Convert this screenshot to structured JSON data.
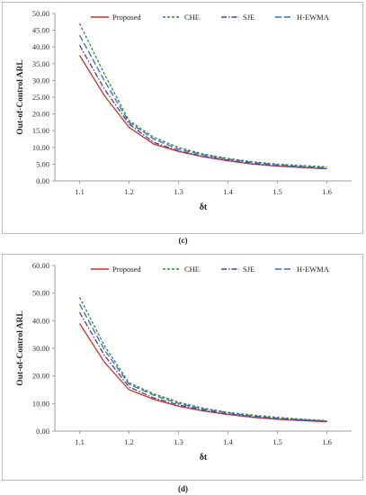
{
  "captions": [
    "(c)",
    "(d)"
  ],
  "chart_data": [
    {
      "type": "line",
      "panel": "(c)",
      "xlabel": "δt",
      "ylabel": "Out-of-Control ARL",
      "x": [
        1.1,
        1.15,
        1.2,
        1.25,
        1.3,
        1.35,
        1.4,
        1.45,
        1.5,
        1.55,
        1.6
      ],
      "xticks": [
        "1.1",
        "1.2",
        "1.3",
        "1.4",
        "1.5",
        "1.6"
      ],
      "yticks": [
        "0.00",
        "5.00",
        "10.00",
        "15.00",
        "20.00",
        "25.00",
        "30.00",
        "35.00",
        "40.00",
        "45.00",
        "50.00"
      ],
      "xlim": [
        1.05,
        1.65
      ],
      "ylim": [
        0,
        50
      ],
      "grid": false,
      "legend": "top",
      "series": [
        {
          "name": "Proposed",
          "color": "#c0392b",
          "dash": "solid",
          "values": [
            37.5,
            25.5,
            16.0,
            11.0,
            8.8,
            7.2,
            6.0,
            5.0,
            4.4,
            4.0,
            3.6
          ]
        },
        {
          "name": "CHE",
          "color": "#2e8b3a",
          "dash": "dashed",
          "values": [
            47.0,
            32.0,
            18.0,
            13.0,
            10.0,
            8.0,
            6.7,
            5.7,
            5.0,
            4.6,
            4.2
          ]
        },
        {
          "name": "SJE",
          "color": "#5b3a8c",
          "dash": "dashdot",
          "values": [
            40.5,
            27.5,
            17.0,
            11.5,
            9.0,
            7.4,
            6.2,
            5.2,
            4.5,
            4.1,
            3.7
          ]
        },
        {
          "name": "H-EWMA",
          "color": "#3b6fb6",
          "dash": "longdash",
          "values": [
            43.5,
            30.0,
            17.5,
            12.5,
            9.5,
            7.8,
            6.5,
            5.5,
            4.8,
            4.3,
            3.9
          ]
        }
      ]
    },
    {
      "type": "line",
      "panel": "(d)",
      "xlabel": "δt",
      "ylabel": "Out-of-Control ARL",
      "x": [
        1.1,
        1.15,
        1.2,
        1.25,
        1.3,
        1.35,
        1.4,
        1.45,
        1.5,
        1.55,
        1.6
      ],
      "xticks": [
        "1.1",
        "1.2",
        "1.3",
        "1.4",
        "1.5",
        "1.6"
      ],
      "yticks": [
        "0.00",
        "10.00",
        "20.00",
        "30.00",
        "40.00",
        "50.00",
        "60.00"
      ],
      "xlim": [
        1.05,
        1.65
      ],
      "ylim": [
        0,
        60
      ],
      "grid": false,
      "legend": "top",
      "series": [
        {
          "name": "Proposed",
          "color": "#c0392b",
          "dash": "solid",
          "values": [
            39.0,
            25.0,
            15.0,
            11.5,
            9.0,
            7.3,
            6.0,
            5.0,
            4.3,
            3.8,
            3.4
          ]
        },
        {
          "name": "CHE",
          "color": "#2e8b3a",
          "dash": "dashed",
          "values": [
            48.5,
            31.0,
            17.5,
            13.5,
            10.5,
            8.3,
            6.8,
            5.8,
            5.0,
            4.3,
            3.8
          ]
        },
        {
          "name": "SJE",
          "color": "#5b3a8c",
          "dash": "dashdot",
          "values": [
            43.0,
            27.5,
            16.0,
            12.0,
            9.5,
            7.6,
            6.3,
            5.2,
            4.5,
            4.0,
            3.6
          ]
        },
        {
          "name": "H-EWMA",
          "color": "#3b6fb6",
          "dash": "longdash",
          "values": [
            46.0,
            29.5,
            17.0,
            13.0,
            10.0,
            8.0,
            6.6,
            5.5,
            4.7,
            4.1,
            3.7
          ]
        }
      ]
    }
  ]
}
